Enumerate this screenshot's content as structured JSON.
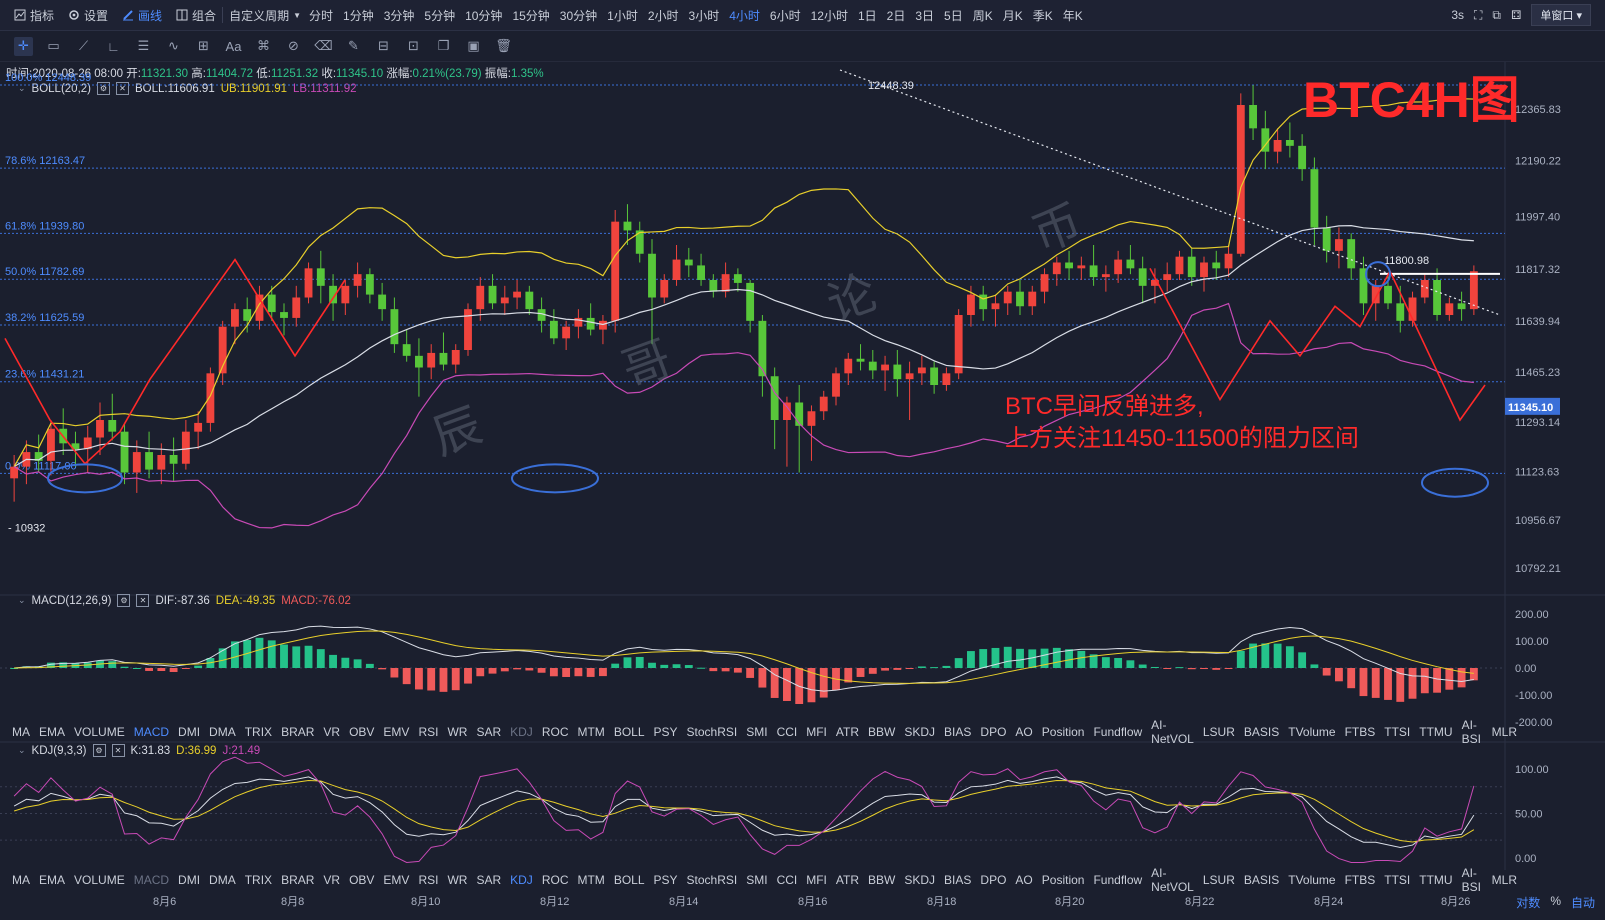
{
  "toolbar": {
    "indicator": "指标",
    "settings": "设置",
    "draw": "画线",
    "combo": "组合",
    "custom_period": "自定义周期",
    "periods": [
      "分时",
      "1分钟",
      "3分钟",
      "5分钟",
      "10分钟",
      "15分钟",
      "30分钟",
      "1小时",
      "2小时",
      "3小时",
      "4小时",
      "6小时",
      "12小时",
      "1日",
      "2日",
      "3日",
      "5日",
      "周K",
      "月K",
      "季K",
      "年K"
    ],
    "active_period": "4小时",
    "refresh": "3s",
    "window_mode": "单窗口"
  },
  "info_bar": {
    "time_label": "时间",
    "time": "2020-08-26 08:00",
    "open_label": "开",
    "open": "11321.30",
    "high_label": "高",
    "high": "11404.72",
    "low_label": "低",
    "low": "11251.32",
    "close_label": "收",
    "close": "11345.10",
    "chg_label": "涨幅",
    "chg": "0.21%(23.79)",
    "amp_label": "振幅",
    "amp": "1.35%"
  },
  "boll": {
    "name": "BOLL(20,2)",
    "mid": "BOLL:11606.91",
    "ub": "UB:11901.91",
    "lb": "LB:11311.92"
  },
  "macd": {
    "name": "MACD(12,26,9)",
    "dif": "DIF:-87.36",
    "dea": "DEA:-49.35",
    "macd": "MACD:-76.02"
  },
  "kdj": {
    "name": "KDJ(9,3,3)",
    "k": "K:31.83",
    "d": "D:36.99",
    "j": "J:21.49"
  },
  "annotations": {
    "title": "BTC4H图",
    "note1": "BTC早间反弹进多,",
    "note2": "上方关注11450-11500的阻力区间",
    "watermark": [
      "辰",
      "哥",
      "论",
      "币"
    ],
    "high_label": "12448.39",
    "low_label": "10932",
    "resist_label": "11800.98",
    "last_price": "11345.10"
  },
  "fib_levels": [
    {
      "label": "100.0% 12448.39",
      "value": 12448.39
    },
    {
      "label": "78.6% 12163.47",
      "value": 12163.47
    },
    {
      "label": "61.8% 11939.80",
      "value": 11939.8
    },
    {
      "label": "50.0% 11782.69",
      "value": 11782.69
    },
    {
      "label": "38.2% 11625.59",
      "value": 11625.59
    },
    {
      "label": "23.6% 11431.21",
      "value": 11431.21
    },
    {
      "label": "0.0% 11117.00",
      "value": 11117.0
    }
  ],
  "price_axis": [
    "12365.83",
    "12190.22",
    "11997.40",
    "11817.32",
    "11639.94",
    "11465.23",
    "11293.14",
    "11123.63",
    "10956.67",
    "10792.21"
  ],
  "macd_axis": [
    "200.00",
    "100.00",
    "0.00",
    "-100.00",
    "-200.00"
  ],
  "kdj_axis": [
    "100.00",
    "50.00",
    "0.00"
  ],
  "date_axis": [
    "8月6",
    "8月8",
    "8月10",
    "8月12",
    "8月14",
    "8月16",
    "8月18",
    "8月20",
    "8月22",
    "8月24",
    "8月26"
  ],
  "indicator_tabs": [
    "MA",
    "EMA",
    "VOLUME",
    "MACD",
    "DMI",
    "DMA",
    "TRIX",
    "BRAR",
    "VR",
    "OBV",
    "EMV",
    "RSI",
    "WR",
    "SAR",
    "KDJ",
    "ROC",
    "MTM",
    "BOLL",
    "PSY",
    "StochRSI",
    "SMI",
    "CCI",
    "MFI",
    "ATR",
    "BBW",
    "SKDJ",
    "BIAS",
    "DPO",
    "AO",
    "Position",
    "Fundflow",
    "AI-NetVOL",
    "LSUR",
    "BASIS",
    "TVolume",
    "FTBS",
    "TTSI",
    "TTMU",
    "AI-BSI",
    "MLR"
  ],
  "bottom_right": [
    "对数",
    "%",
    "自动"
  ],
  "colors": {
    "bg": "#1b1f2e",
    "up": "#f0443d",
    "down": "#58c73a",
    "boll_mid": "#d9dde6",
    "boll_ub": "#e8cf2b",
    "boll_lb": "#c84ab6",
    "accent": "#4e8cff",
    "annot_red": "#ff2a2a"
  },
  "chart_data": {
    "type": "candlestick",
    "price_range": [
      10700,
      12500
    ],
    "candles": [
      [
        11100,
        11180,
        11020,
        11140
      ],
      [
        11140,
        11230,
        11080,
        11190
      ],
      [
        11190,
        11250,
        11120,
        11160
      ],
      [
        11160,
        11300,
        11110,
        11270
      ],
      [
        11270,
        11340,
        11180,
        11220
      ],
      [
        11220,
        11260,
        11140,
        11200
      ],
      [
        11200,
        11280,
        11120,
        11240
      ],
      [
        11240,
        11360,
        11180,
        11300
      ],
      [
        11300,
        11390,
        11230,
        11260
      ],
      [
        11260,
        11290,
        11080,
        11120
      ],
      [
        11120,
        11230,
        11050,
        11190
      ],
      [
        11190,
        11260,
        11100,
        11130
      ],
      [
        11130,
        11220,
        11080,
        11180
      ],
      [
        11180,
        11240,
        11090,
        11150
      ],
      [
        11150,
        11300,
        11130,
        11260
      ],
      [
        11260,
        11330,
        11200,
        11290
      ],
      [
        11290,
        11480,
        11260,
        11460
      ],
      [
        11460,
        11640,
        11420,
        11620
      ],
      [
        11620,
        11700,
        11560,
        11680
      ],
      [
        11680,
        11720,
        11600,
        11640
      ],
      [
        11640,
        11760,
        11610,
        11730
      ],
      [
        11730,
        11760,
        11640,
        11670
      ],
      [
        11670,
        11700,
        11590,
        11650
      ],
      [
        11650,
        11760,
        11620,
        11720
      ],
      [
        11720,
        11840,
        11700,
        11820
      ],
      [
        11820,
        11880,
        11700,
        11760
      ],
      [
        11760,
        11800,
        11640,
        11700
      ],
      [
        11700,
        11780,
        11660,
        11760
      ],
      [
        11760,
        11840,
        11720,
        11800
      ],
      [
        11800,
        11820,
        11700,
        11730
      ],
      [
        11730,
        11770,
        11640,
        11680
      ],
      [
        11680,
        11720,
        11530,
        11560
      ],
      [
        11560,
        11610,
        11500,
        11520
      ],
      [
        11520,
        11580,
        11380,
        11480
      ],
      [
        11480,
        11560,
        11440,
        11530
      ],
      [
        11530,
        11600,
        11470,
        11490
      ],
      [
        11490,
        11560,
        11460,
        11540
      ],
      [
        11540,
        11700,
        11520,
        11680
      ],
      [
        11680,
        11790,
        11640,
        11760
      ],
      [
        11760,
        11800,
        11680,
        11700
      ],
      [
        11700,
        11760,
        11660,
        11720
      ],
      [
        11720,
        11780,
        11680,
        11740
      ],
      [
        11740,
        11760,
        11660,
        11680
      ],
      [
        11680,
        11720,
        11600,
        11640
      ],
      [
        11640,
        11680,
        11560,
        11580
      ],
      [
        11580,
        11640,
        11540,
        11620
      ],
      [
        11620,
        11680,
        11580,
        11650
      ],
      [
        11650,
        11700,
        11590,
        11610
      ],
      [
        11610,
        11660,
        11560,
        11640
      ],
      [
        11640,
        12020,
        11600,
        11980
      ],
      [
        11980,
        12040,
        11900,
        11950
      ],
      [
        11950,
        11980,
        11840,
        11870
      ],
      [
        11870,
        11920,
        11560,
        11720
      ],
      [
        11720,
        11800,
        11700,
        11780
      ],
      [
        11780,
        11900,
        11760,
        11850
      ],
      [
        11850,
        11890,
        11790,
        11830
      ],
      [
        11830,
        11870,
        11760,
        11780
      ],
      [
        11780,
        11800,
        11720,
        11740
      ],
      [
        11740,
        11840,
        11720,
        11800
      ],
      [
        11800,
        11820,
        11740,
        11770
      ],
      [
        11770,
        11780,
        11600,
        11640
      ],
      [
        11640,
        11660,
        11380,
        11450
      ],
      [
        11450,
        11480,
        11200,
        11300
      ],
      [
        11300,
        11380,
        11140,
        11360
      ],
      [
        11360,
        11420,
        11120,
        11280
      ],
      [
        11280,
        11350,
        11160,
        11330
      ],
      [
        11330,
        11400,
        11300,
        11380
      ],
      [
        11380,
        11480,
        11350,
        11460
      ],
      [
        11460,
        11530,
        11420,
        11510
      ],
      [
        11510,
        11560,
        11470,
        11500
      ],
      [
        11500,
        11540,
        11440,
        11470
      ],
      [
        11470,
        11520,
        11400,
        11490
      ],
      [
        11490,
        11540,
        11380,
        11440
      ],
      [
        11440,
        11500,
        11300,
        11460
      ],
      [
        11460,
        11520,
        11420,
        11480
      ],
      [
        11480,
        11500,
        11390,
        11420
      ],
      [
        11420,
        11480,
        11400,
        11460
      ],
      [
        11460,
        11680,
        11440,
        11660
      ],
      [
        11660,
        11760,
        11620,
        11730
      ],
      [
        11730,
        11760,
        11640,
        11680
      ],
      [
        11680,
        11730,
        11620,
        11700
      ],
      [
        11700,
        11760,
        11660,
        11740
      ],
      [
        11740,
        11780,
        11660,
        11690
      ],
      [
        11690,
        11760,
        11660,
        11740
      ],
      [
        11740,
        11820,
        11700,
        11800
      ],
      [
        11800,
        11860,
        11760,
        11840
      ],
      [
        11840,
        11880,
        11780,
        11820
      ],
      [
        11820,
        11860,
        11780,
        11830
      ],
      [
        11830,
        11900,
        11760,
        11790
      ],
      [
        11790,
        11830,
        11740,
        11800
      ],
      [
        11800,
        11880,
        11770,
        11850
      ],
      [
        11850,
        11900,
        11800,
        11820
      ],
      [
        11820,
        11860,
        11700,
        11760
      ],
      [
        11760,
        11820,
        11700,
        11780
      ],
      [
        11780,
        11840,
        11740,
        11800
      ],
      [
        11800,
        11880,
        11780,
        11860
      ],
      [
        11860,
        11890,
        11760,
        11790
      ],
      [
        11790,
        11860,
        11740,
        11840
      ],
      [
        11840,
        11880,
        11780,
        11820
      ],
      [
        11820,
        11900,
        11790,
        11870
      ],
      [
        11870,
        12420,
        11860,
        12380
      ],
      [
        12380,
        12448,
        12260,
        12300
      ],
      [
        12300,
        12360,
        12160,
        12220
      ],
      [
        12220,
        12300,
        12180,
        12260
      ],
      [
        12260,
        12320,
        12200,
        12240
      ],
      [
        12240,
        12280,
        12120,
        12160
      ],
      [
        12160,
        12200,
        11900,
        11960
      ],
      [
        11960,
        12000,
        11840,
        11880
      ],
      [
        11880,
        11960,
        11820,
        11920
      ],
      [
        11920,
        11940,
        11780,
        11820
      ],
      [
        11820,
        11860,
        11660,
        11700
      ],
      [
        11700,
        11780,
        11640,
        11760
      ],
      [
        11760,
        11800,
        11680,
        11700
      ],
      [
        11700,
        11760,
        11600,
        11640
      ],
      [
        11640,
        11740,
        11620,
        11720
      ],
      [
        11720,
        11800,
        11700,
        11780
      ],
      [
        11780,
        11820,
        11640,
        11660
      ],
      [
        11660,
        11720,
        11640,
        11700
      ],
      [
        11700,
        11740,
        11640,
        11680
      ],
      [
        11680,
        11830,
        11660,
        11810
      ]
    ]
  }
}
